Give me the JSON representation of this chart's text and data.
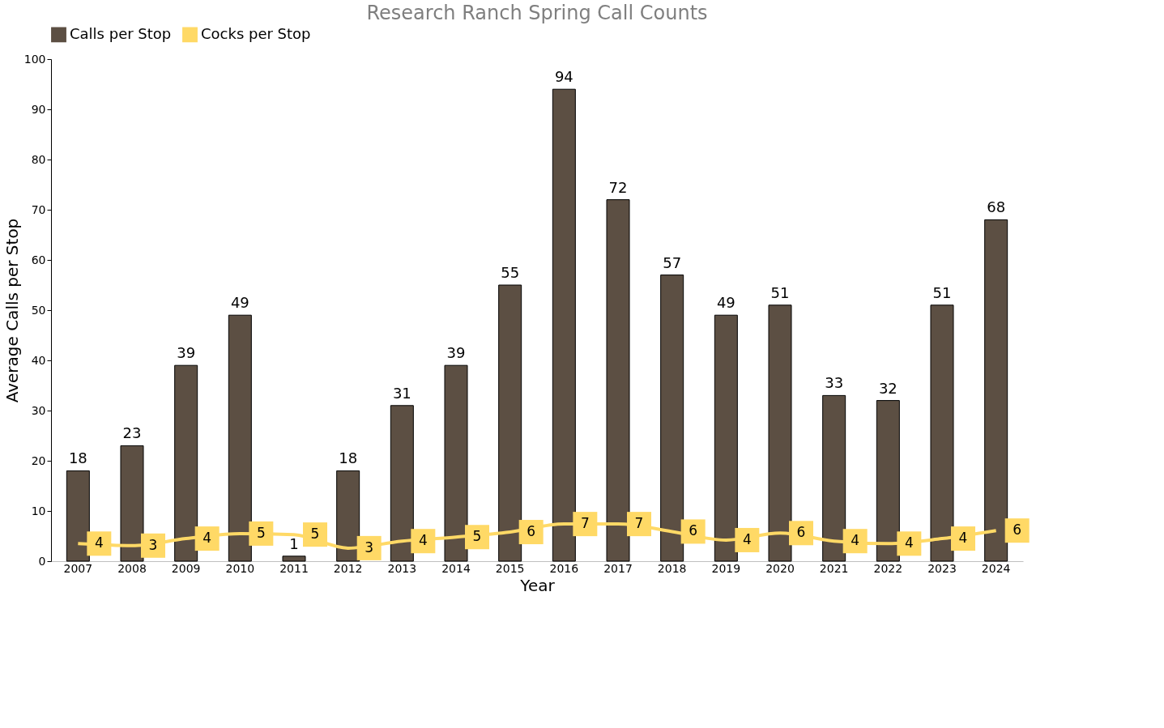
{
  "chart_data": {
    "type": "bar",
    "title": "Research Ranch Spring Call Counts",
    "xlabel": "Year",
    "ylabel": "Average Calls per Stop",
    "categories": [
      "2007",
      "2008",
      "2009",
      "2010",
      "2011",
      "2012",
      "2013",
      "2014",
      "2015",
      "2016",
      "2017",
      "2018",
      "2019",
      "2020",
      "2021",
      "2022",
      "2023",
      "2024"
    ],
    "series": [
      {
        "name": "Calls per Stop",
        "type": "bar",
        "color": "#5c4f43",
        "values": [
          18,
          23,
          39,
          49,
          1,
          18,
          31,
          39,
          55,
          94,
          72,
          57,
          49,
          51,
          33,
          32,
          51,
          68
        ]
      },
      {
        "name": "Cocks per Stop",
        "type": "line",
        "color": "#ffd966",
        "values": [
          3.5,
          3.1,
          4.5,
          5.5,
          5.3,
          2.6,
          4.0,
          4.8,
          5.8,
          7.4,
          7.4,
          5.9,
          4.2,
          5.6,
          4.0,
          3.5,
          4.5,
          6.1
        ],
        "value_labels": [
          "4",
          "3",
          "4",
          "5",
          "5",
          "3",
          "4",
          "5",
          "6",
          "7",
          "7",
          "6",
          "4",
          "6",
          "4",
          "4",
          "4",
          "6"
        ]
      }
    ],
    "ylim": [
      0,
      100
    ],
    "yticks": [
      0,
      10,
      20,
      30,
      40,
      50,
      60,
      70,
      80,
      90,
      100
    ],
    "data_labels": true,
    "grid": false,
    "legend": "top"
  }
}
